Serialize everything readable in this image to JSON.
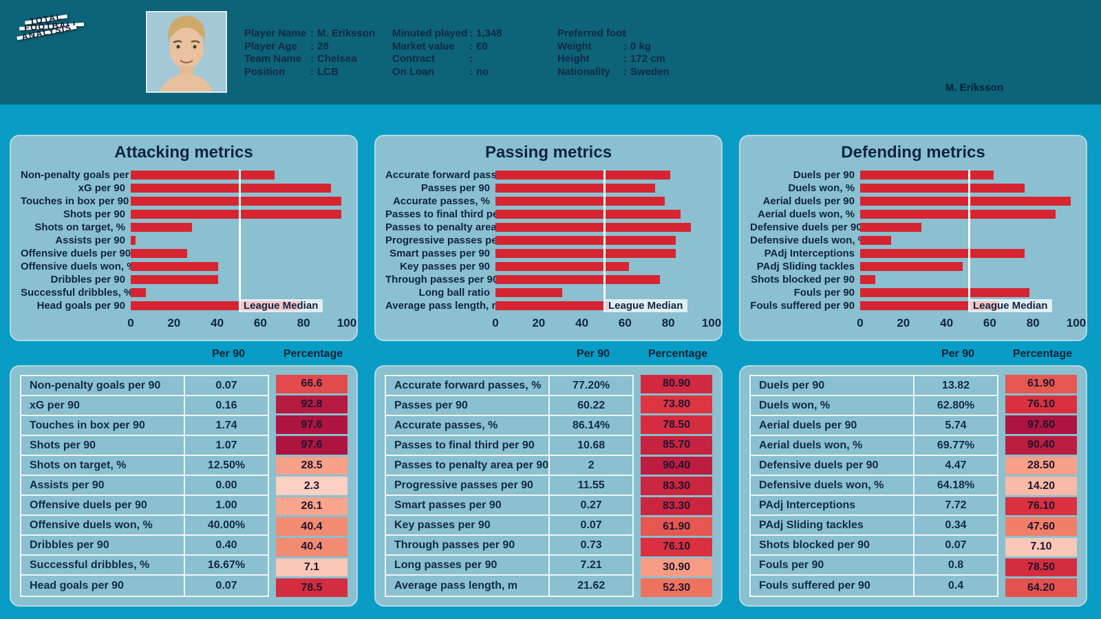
{
  "header": {
    "logo_lines": [
      "Total",
      "Football",
      "Analysis"
    ],
    "watermark": "M. Eriksson",
    "columns": [
      {
        "rows": [
          {
            "label": "Player Name",
            "value": "M. Eriksson"
          },
          {
            "label": "Player Age",
            "value": "28"
          },
          {
            "label": "Team Name",
            "value": "Chelsea"
          },
          {
            "label": "Position",
            "value": "LCB"
          }
        ]
      },
      {
        "rows": [
          {
            "label": "Minuted played",
            "value": "1,348"
          },
          {
            "label": "Market value",
            "value": "€0"
          },
          {
            "label": "Contract",
            "value": ""
          },
          {
            "label": "On Loan",
            "value": "no"
          }
        ]
      },
      {
        "rows": [
          {
            "label": "Preferred foot",
            "value": ""
          },
          {
            "label": "Weight",
            "value": "0 kg"
          },
          {
            "label": "Height",
            "value": "172 cm"
          },
          {
            "label": "Nationality",
            "value": "Sweden"
          }
        ]
      }
    ]
  },
  "median_label": "League Median",
  "axis_ticks": [
    "0",
    "20",
    "40",
    "60",
    "80",
    "100"
  ],
  "table_headers": {
    "per90": "Per 90",
    "percentage": "Percentage"
  },
  "colors": {
    "header_bg": "#0d6377",
    "main_bg": "#099dc5",
    "panel_bg": "#8ac0cf",
    "bar_color": "#d62430",
    "median_line": "#ffffff",
    "text_navy": "#122a45",
    "pct_scale": [
      [
        0,
        "#fcd4c8"
      ],
      [
        25,
        "#f9a68e"
      ],
      [
        50,
        "#f07a62"
      ],
      [
        75,
        "#dc3140"
      ],
      [
        100,
        "#a81140"
      ]
    ]
  },
  "chart_data": [
    {
      "type": "bar",
      "title": "Attacking metrics",
      "orientation": "horizontal",
      "categories": [
        "Non-penalty goals per ..",
        "xG per 90",
        "Touches in box per 90",
        "Shots per 90",
        "Shots on target, %",
        "Assists per 90",
        "Offensive duels per 90",
        "Offensive duels won, %",
        "Dribbles per 90",
        "Successful dribbles, %",
        "Head goals per 90"
      ],
      "values": [
        66.6,
        92.8,
        97.6,
        97.6,
        28.5,
        2.3,
        26.1,
        40.4,
        40.4,
        7.1,
        78.5
      ],
      "xlabel": "",
      "ylabel": "",
      "xlim": [
        0,
        100
      ],
      "median_line": 50,
      "annotation": "League Median",
      "grid": false,
      "legend": false
    },
    {
      "type": "bar",
      "title": "Passing metrics",
      "orientation": "horizontal",
      "categories": [
        "Accurate forward pass..",
        "Passes per 90",
        "Accurate passes, %",
        "Passes to final third pe..",
        "Passes to penalty area ..",
        "Progressive passes per ..",
        "Smart passes per 90",
        "Key passes per 90",
        "Through passes per 90",
        "Long ball ratio",
        "Average pass length, m"
      ],
      "values": [
        80.9,
        73.8,
        78.5,
        85.7,
        90.4,
        83.3,
        83.3,
        61.9,
        76.1,
        30.9,
        52.3
      ],
      "xlabel": "",
      "ylabel": "",
      "xlim": [
        0,
        100
      ],
      "median_line": 50,
      "annotation": "League Median",
      "grid": false,
      "legend": false
    },
    {
      "type": "bar",
      "title": "Defending metrics",
      "orientation": "horizontal",
      "categories": [
        "Duels per 90",
        "Duels won, %",
        "Aerial duels per 90",
        "Aerial duels won, %",
        "Defensive duels per 90",
        "Defensive duels won, %",
        "PAdj Interceptions",
        "PAdj Sliding tackles",
        "Shots blocked per 90",
        "Fouls per 90",
        "Fouls suffered per 90"
      ],
      "values": [
        61.9,
        76.1,
        97.6,
        90.4,
        28.5,
        14.2,
        76.1,
        47.6,
        7.1,
        78.5,
        64.2
      ],
      "xlabel": "",
      "ylabel": "",
      "xlim": [
        0,
        100
      ],
      "median_line": 50,
      "annotation": "League Median",
      "grid": false,
      "legend": false
    }
  ],
  "sections": [
    {
      "id": "attacking",
      "table": {
        "rows": [
          {
            "label": "Non-penalty goals per 90",
            "per90": "0.07",
            "percentage": "66.6"
          },
          {
            "label": "xG per 90",
            "per90": "0.16",
            "percentage": "92.8"
          },
          {
            "label": "Touches in box per 90",
            "per90": "1.74",
            "percentage": "97.6"
          },
          {
            "label": "Shots per 90",
            "per90": "1.07",
            "percentage": "97.6"
          },
          {
            "label": "Shots on target, %",
            "per90": "12.50%",
            "percentage": "28.5"
          },
          {
            "label": "Assists per 90",
            "per90": "0.00",
            "percentage": "2.3"
          },
          {
            "label": "Offensive duels per 90",
            "per90": "1.00",
            "percentage": "26.1"
          },
          {
            "label": "Offensive duels won, %",
            "per90": "40.00%",
            "percentage": "40.4"
          },
          {
            "label": "Dribbles per 90",
            "per90": "0.40",
            "percentage": "40.4"
          },
          {
            "label": "Successful dribbles, %",
            "per90": "16.67%",
            "percentage": "7.1"
          },
          {
            "label": "Head goals per 90",
            "per90": "0.07",
            "percentage": "78.5"
          }
        ]
      }
    },
    {
      "id": "passing",
      "table": {
        "rows": [
          {
            "label": "Accurate forward passes, %",
            "per90": "77.20%",
            "percentage": "80.90"
          },
          {
            "label": "Passes per 90",
            "per90": "60.22",
            "percentage": "73.80"
          },
          {
            "label": "Accurate passes, %",
            "per90": "86.14%",
            "percentage": "78.50"
          },
          {
            "label": "Passes to final third per 90",
            "per90": "10.68",
            "percentage": "85.70"
          },
          {
            "label": "Passes to penalty area per 90",
            "per90": "2",
            "percentage": "90.40"
          },
          {
            "label": "Progressive passes per 90",
            "per90": "11.55",
            "percentage": "83.30"
          },
          {
            "label": "Smart passes per 90",
            "per90": "0.27",
            "percentage": "83.30"
          },
          {
            "label": "Key passes per 90",
            "per90": "0.07",
            "percentage": "61.90"
          },
          {
            "label": "Through passes per 90",
            "per90": "0.73",
            "percentage": "76.10"
          },
          {
            "label": "Long passes per 90",
            "per90": "7.21",
            "percentage": "30.90"
          },
          {
            "label": "Average pass length, m",
            "per90": "21.62",
            "percentage": "52.30"
          }
        ]
      }
    },
    {
      "id": "defending",
      "table": {
        "rows": [
          {
            "label": "Duels per 90",
            "per90": "13.82",
            "percentage": "61.90"
          },
          {
            "label": "Duels won, %",
            "per90": "62.80%",
            "percentage": "76.10"
          },
          {
            "label": "Aerial duels per 90",
            "per90": "5.74",
            "percentage": "97.60"
          },
          {
            "label": "Aerial duels won, %",
            "per90": "69.77%",
            "percentage": "90.40"
          },
          {
            "label": "Defensive duels per 90",
            "per90": "4.47",
            "percentage": "28.50"
          },
          {
            "label": "Defensive duels won, %",
            "per90": "64.18%",
            "percentage": "14.20"
          },
          {
            "label": "PAdj Interceptions",
            "per90": "7.72",
            "percentage": "76.10"
          },
          {
            "label": "PAdj Sliding tackles",
            "per90": "0.34",
            "percentage": "47.60"
          },
          {
            "label": "Shots blocked per 90",
            "per90": "0.07",
            "percentage": "7.10"
          },
          {
            "label": "Fouls per 90",
            "per90": "0.8",
            "percentage": "78.50"
          },
          {
            "label": "Fouls suffered per 90",
            "per90": "0.4",
            "percentage": "64.20"
          }
        ]
      }
    }
  ]
}
